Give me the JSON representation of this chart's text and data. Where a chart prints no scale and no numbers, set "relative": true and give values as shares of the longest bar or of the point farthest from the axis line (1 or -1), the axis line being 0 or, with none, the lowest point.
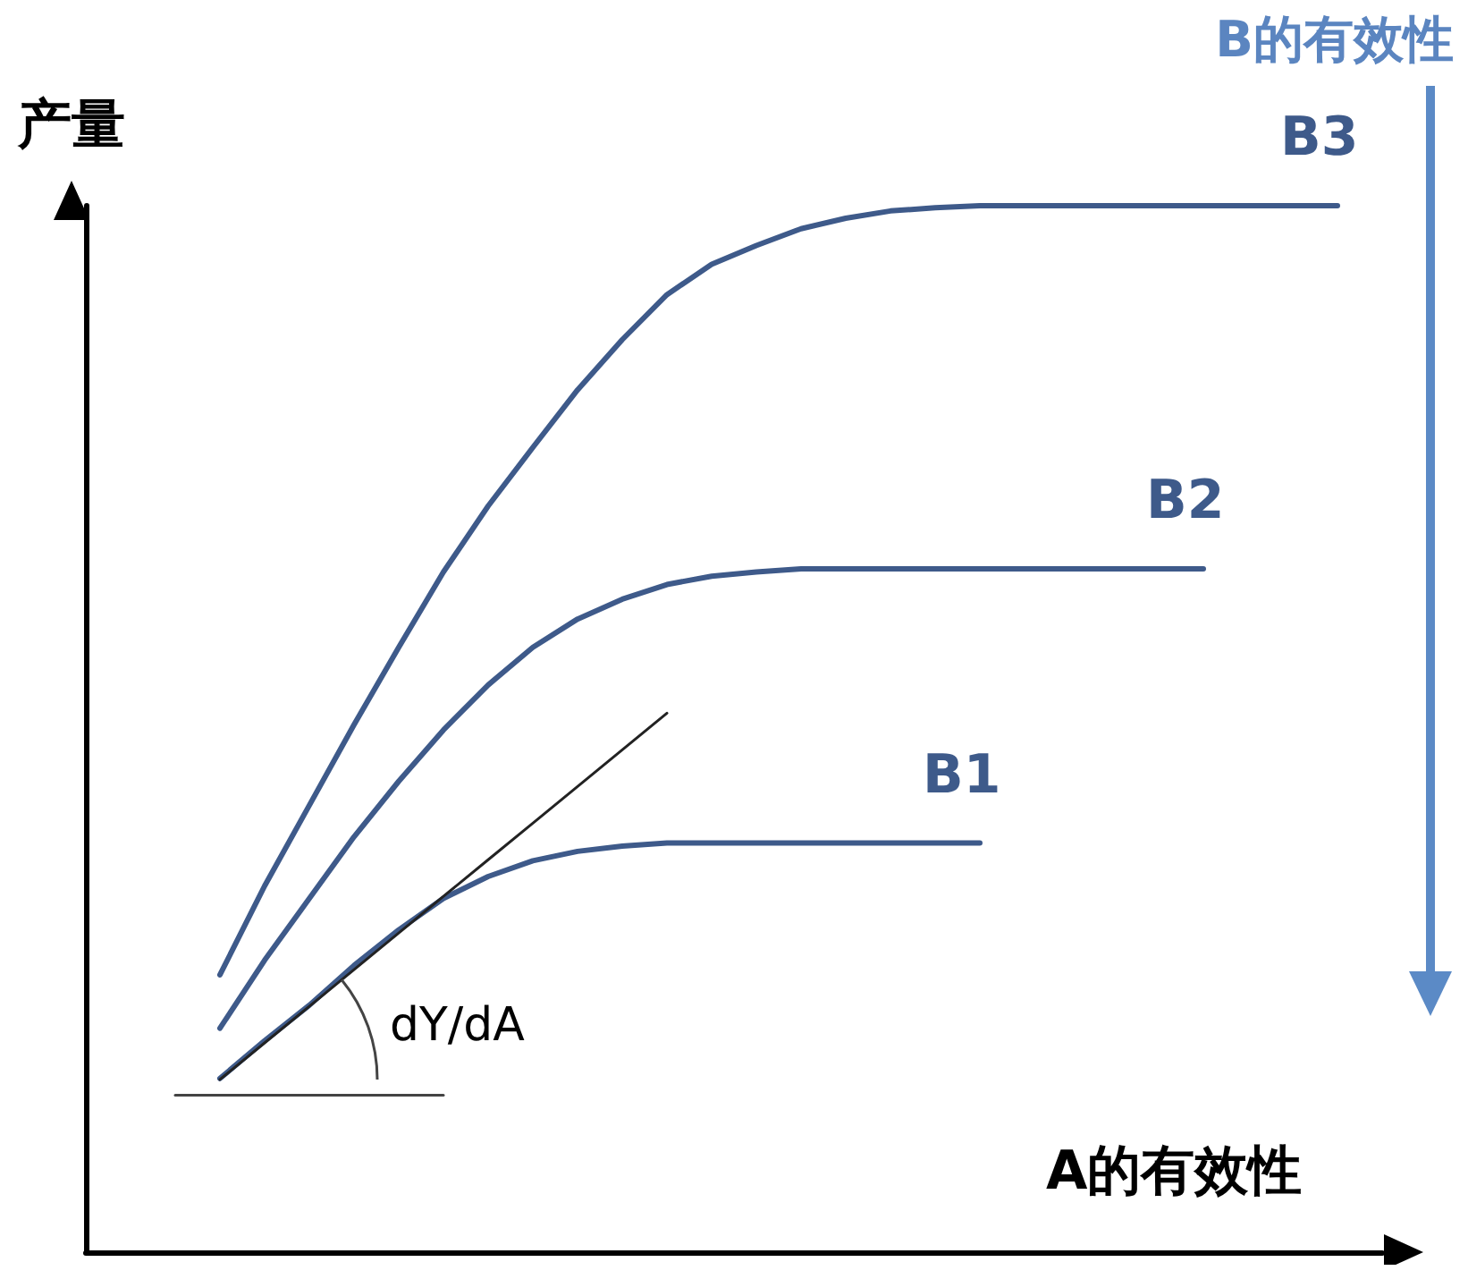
{
  "chart_data": {
    "type": "line",
    "relative": true,
    "xlabel": "A的有效性",
    "ylabel": "产量",
    "tick_labels": false,
    "marker": "none",
    "line_style": "solid",
    "categories": [
      null,
      null,
      null,
      null,
      null,
      null,
      null,
      null,
      null,
      null,
      null,
      null,
      null,
      null,
      null,
      null,
      null,
      null,
      null,
      null,
      null,
      null,
      null,
      null,
      null,
      null,
      null,
      null,
      null,
      null
    ],
    "annotations": [
      "B的有效性",
      "dY/dA"
    ],
    "series": [
      {
        "name": "B3",
        "color": "#3e5a8a",
        "values": [
          null,
          null,
          null,
          0.265,
          0.35,
          0.427,
          0.504,
          0.578,
          0.65,
          0.713,
          0.769,
          0.824,
          0.872,
          0.915,
          0.944,
          0.962,
          0.978,
          0.988,
          0.995,
          0.998,
          1.0,
          1.0,
          1.0,
          1.0,
          1.0,
          1.0,
          1.0,
          1.0,
          1.0,
          null
        ]
      },
      {
        "name": "B2",
        "color": "#3e5a8a",
        "values": [
          null,
          null,
          null,
          0.214,
          0.279,
          0.338,
          0.397,
          0.45,
          0.499,
          0.542,
          0.578,
          0.605,
          0.624,
          0.638,
          0.646,
          0.65,
          0.653,
          0.653,
          0.653,
          0.653,
          0.653,
          0.653,
          0.653,
          0.653,
          0.653,
          0.653,
          null,
          null,
          null,
          null
        ]
      },
      {
        "name": "B1",
        "color": "#3e5a8a",
        "values": [
          null,
          null,
          null,
          0.166,
          0.202,
          0.236,
          0.274,
          0.308,
          0.338,
          0.359,
          0.374,
          0.383,
          0.388,
          0.391,
          0.391,
          0.391,
          0.391,
          0.391,
          0.391,
          0.391,
          0.391,
          null,
          null,
          null,
          null,
          null,
          null,
          null,
          null,
          null
        ]
      },
      {
        "color": "#222222",
        "values": [
          null,
          null,
          null,
          0.165,
          0.2,
          0.235,
          0.27,
          0.305,
          0.34,
          0.375,
          0.41,
          0.445,
          0.48,
          0.515,
          null,
          null,
          null,
          null,
          null,
          null,
          null,
          null,
          null,
          null,
          null,
          null,
          null,
          null,
          null,
          null
        ]
      },
      {
        "color": "#444444",
        "values": [
          null,
          null,
          0.15,
          0.15,
          0.15,
          0.15,
          0.15,
          0.15,
          0.15,
          null,
          null,
          null,
          null,
          null,
          null,
          null,
          null,
          null,
          null,
          null,
          null,
          null,
          null,
          null,
          null,
          null,
          null,
          null,
          null,
          null
        ]
      }
    ]
  }
}
